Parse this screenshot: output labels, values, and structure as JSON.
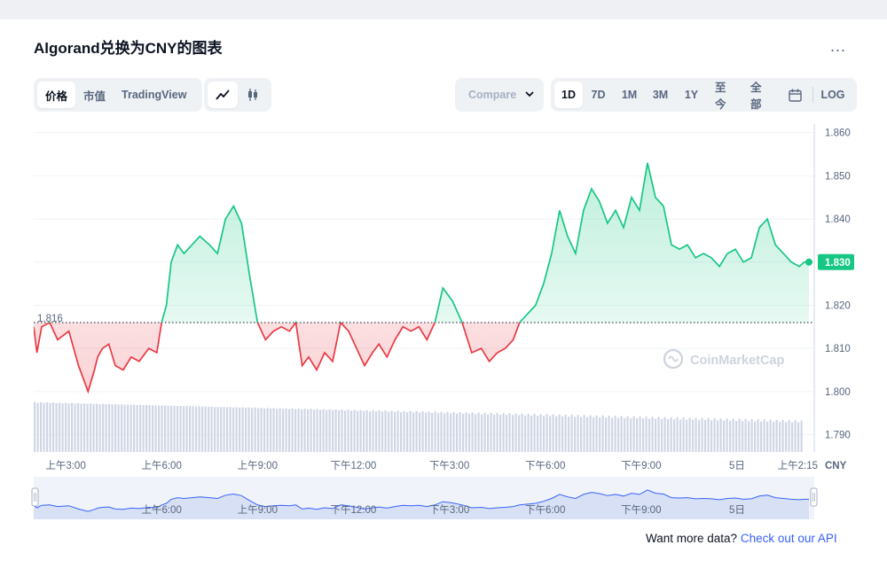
{
  "title": "Algorand兑换为CNY的图表",
  "more_label": "...",
  "view_tabs": [
    {
      "label": "价格",
      "active": true
    },
    {
      "label": "市值",
      "active": false
    },
    {
      "label": "TradingView",
      "active": false
    }
  ],
  "chart_type_icons": [
    {
      "name": "line-chart-icon",
      "active": true
    },
    {
      "name": "candlestick-icon",
      "active": false
    }
  ],
  "compare_label": "Compare",
  "ranges": [
    {
      "label": "1D",
      "active": true
    },
    {
      "label": "7D",
      "active": false
    },
    {
      "label": "1M",
      "active": false
    },
    {
      "label": "3M",
      "active": false
    },
    {
      "label": "1Y",
      "active": false
    },
    {
      "label": "至今",
      "active": false
    },
    {
      "label": "全部",
      "active": false
    }
  ],
  "calendar_icon": "calendar-icon",
  "log_label": "LOG",
  "watermark": "CoinMarketCap",
  "footer": {
    "text": "Want more data?",
    "link": "Check out our API"
  },
  "colors": {
    "up": "#16c784",
    "down": "#ea3943",
    "volume": "#cfd6e4",
    "navigator": "#d7e0f5",
    "navigator_line": "#3861fb"
  },
  "chart_data": {
    "type": "line",
    "currency": "CNY",
    "baseline": 1.816,
    "baseline_label": "1.816",
    "current": 1.83,
    "current_label": "1.830",
    "ylim": [
      1.786,
      1.862
    ],
    "yticks": [
      "1.860",
      "1.850",
      "1.840",
      "1.830",
      "1.820",
      "1.810",
      "1.800",
      "1.790"
    ],
    "xlabel_axis": "CNY",
    "xticks": [
      "上午3:00",
      "上午6:00",
      "上午9:00",
      "下午12:00",
      "下午3:00",
      "下午6:00",
      "下午9:00",
      "5日",
      "上午2:15"
    ],
    "navigator_ticks": [
      "上午6:00",
      "上午9:00",
      "下午12:00",
      "下午3:00",
      "下午6:00",
      "下午9:00",
      "5日"
    ],
    "x_hours": [
      2.0,
      2.1,
      2.25,
      2.5,
      2.75,
      3.1,
      3.4,
      3.7,
      3.9,
      4.0,
      4.15,
      4.35,
      4.55,
      4.8,
      5.05,
      5.3,
      5.6,
      5.85,
      6.0,
      6.15,
      6.3,
      6.5,
      6.7,
      6.95,
      7.2,
      7.5,
      7.75,
      8.0,
      8.25,
      8.5,
      8.75,
      9.0,
      9.25,
      9.5,
      9.75,
      10.0,
      10.2,
      10.4,
      10.6,
      10.85,
      11.1,
      11.35,
      11.6,
      11.85,
      12.1,
      12.35,
      12.6,
      12.8,
      13.05,
      13.3,
      13.55,
      13.8,
      14.05,
      14.3,
      14.55,
      14.8,
      15.1,
      15.4,
      15.7,
      16.0,
      16.25,
      16.5,
      16.75,
      17.0,
      17.2,
      17.45,
      17.7,
      17.95,
      18.2,
      18.45,
      18.7,
      18.95,
      19.2,
      19.45,
      19.7,
      19.95,
      20.2,
      20.45,
      20.7,
      20.95,
      21.2,
      21.45,
      21.7,
      21.95,
      22.2,
      22.45,
      22.7,
      22.95,
      23.2,
      23.45,
      23.7,
      23.95,
      24.2,
      24.45,
      24.7,
      24.95,
      25.2,
      25.45,
      25.7,
      25.95,
      26.1,
      26.25
    ],
    "values": [
      1.815,
      1.809,
      1.815,
      1.816,
      1.812,
      1.814,
      1.806,
      1.8,
      1.805,
      1.808,
      1.81,
      1.811,
      1.806,
      1.805,
      1.808,
      1.807,
      1.81,
      1.809,
      1.816,
      1.82,
      1.83,
      1.834,
      1.832,
      1.834,
      1.836,
      1.834,
      1.832,
      1.84,
      1.843,
      1.839,
      1.827,
      1.816,
      1.812,
      1.814,
      1.815,
      1.814,
      1.816,
      1.806,
      1.808,
      1.805,
      1.809,
      1.807,
      1.816,
      1.814,
      1.81,
      1.806,
      1.809,
      1.811,
      1.808,
      1.812,
      1.815,
      1.814,
      1.815,
      1.812,
      1.816,
      1.824,
      1.821,
      1.816,
      1.809,
      1.81,
      1.807,
      1.809,
      1.81,
      1.812,
      1.816,
      1.818,
      1.82,
      1.825,
      1.832,
      1.842,
      1.836,
      1.832,
      1.842,
      1.847,
      1.844,
      1.839,
      1.842,
      1.838,
      1.845,
      1.842,
      1.853,
      1.845,
      1.843,
      1.834,
      1.833,
      1.834,
      1.831,
      1.832,
      1.831,
      1.829,
      1.832,
      1.833,
      1.83,
      1.831,
      1.838,
      1.84,
      1.834,
      1.832,
      1.83,
      1.829,
      1.83,
      1.83
    ],
    "x_start_hour": 2.0,
    "x_end_hour": 26.25
  }
}
